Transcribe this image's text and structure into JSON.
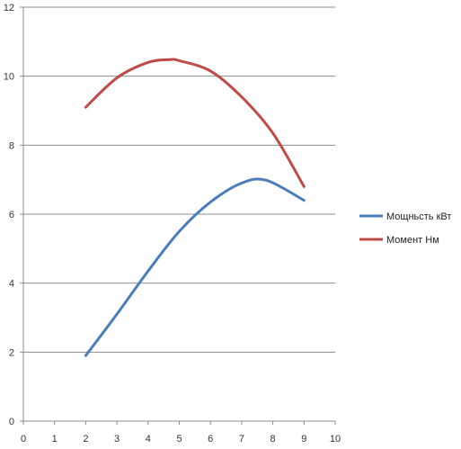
{
  "chart_data": {
    "type": "line",
    "title": "",
    "xlabel": "",
    "ylabel": "",
    "xlim": [
      0,
      10
    ],
    "ylim": [
      0,
      12
    ],
    "xticks": [
      0,
      1,
      2,
      3,
      4,
      5,
      6,
      7,
      8,
      9,
      10
    ],
    "yticks": [
      0,
      2,
      4,
      6,
      8,
      10,
      12
    ],
    "grid": {
      "horizontal": true,
      "vertical": false
    },
    "legend_position": "right",
    "series": [
      {
        "name": "Мощньсть кВт",
        "color": "#4a7ebb",
        "x": [
          2,
          3,
          4,
          5,
          6,
          7,
          7.8,
          9
        ],
        "y": [
          1.9,
          3.1,
          4.35,
          5.5,
          6.35,
          6.9,
          6.98,
          6.4
        ]
      },
      {
        "name": "Момент Нм",
        "color": "#be4b48",
        "x": [
          2,
          3,
          4,
          4.7,
          5,
          6,
          7,
          8,
          9
        ],
        "y": [
          9.1,
          9.95,
          10.4,
          10.48,
          10.45,
          10.15,
          9.4,
          8.35,
          6.8
        ]
      }
    ]
  }
}
